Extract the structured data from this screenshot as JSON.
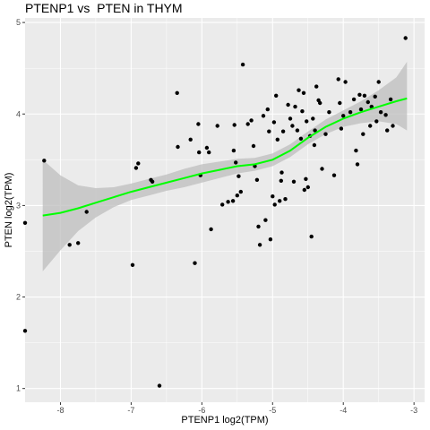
{
  "chart_data": {
    "type": "scatter",
    "title": "PTENP1 vs  PTEN in THYM",
    "xlabel": "PTENP1 log2(TPM)",
    "ylabel": "PTEN log2(TPM)",
    "xlim": [
      -8.5,
      -2.85
    ],
    "ylim": [
      0.85,
      5.05
    ],
    "x_ticks": [
      -8,
      -7,
      -6,
      -5,
      -4,
      -3
    ],
    "y_ticks": [
      1,
      2,
      3,
      4,
      5
    ],
    "grid": true,
    "panel_background": "#ebebeb",
    "grid_color": "#ffffff",
    "point_color": "#000000",
    "smooth_color": "#00ff00",
    "ribbon_color": "#bebebe",
    "points": [
      [
        -8.5,
        2.81
      ],
      [
        -8.5,
        1.63
      ],
      [
        -8.23,
        3.49
      ],
      [
        -7.87,
        2.57
      ],
      [
        -7.75,
        2.59
      ],
      [
        -7.63,
        2.93
      ],
      [
        -6.98,
        2.35
      ],
      [
        -6.93,
        3.41
      ],
      [
        -6.9,
        3.46
      ],
      [
        -6.72,
        3.28
      ],
      [
        -6.7,
        3.26
      ],
      [
        -6.6,
        1.03
      ],
      [
        -6.35,
        4.23
      ],
      [
        -6.34,
        3.64
      ],
      [
        -6.16,
        3.72
      ],
      [
        -6.1,
        2.37
      ],
      [
        -6.05,
        3.89
      ],
      [
        -6.04,
        3.58
      ],
      [
        -6.02,
        3.33
      ],
      [
        -5.93,
        3.63
      ],
      [
        -5.9,
        3.58
      ],
      [
        -5.87,
        2.74
      ],
      [
        -5.78,
        3.87
      ],
      [
        -5.71,
        3.01
      ],
      [
        -5.63,
        3.04
      ],
      [
        -5.56,
        3.05
      ],
      [
        -5.55,
        3.6
      ],
      [
        -5.54,
        3.88
      ],
      [
        -5.52,
        3.47
      ],
      [
        -5.5,
        3.11
      ],
      [
        -5.48,
        3.32
      ],
      [
        -5.45,
        3.15
      ],
      [
        -5.42,
        4.54
      ],
      [
        -5.35,
        3.89
      ],
      [
        -5.3,
        3.93
      ],
      [
        -5.27,
        3.65
      ],
      [
        -5.25,
        3.43
      ],
      [
        -5.22,
        3.28
      ],
      [
        -5.2,
        2.77
      ],
      [
        -5.18,
        2.57
      ],
      [
        -5.13,
        3.98
      ],
      [
        -5.1,
        2.84
      ],
      [
        -5.07,
        4.05
      ],
      [
        -5.05,
        3.81
      ],
      [
        -5.03,
        2.63
      ],
      [
        -5.0,
        3.1
      ],
      [
        -4.98,
        3.91
      ],
      [
        -4.97,
        3.01
      ],
      [
        -4.95,
        4.2
      ],
      [
        -4.93,
        3.72
      ],
      [
        -4.9,
        3.05
      ],
      [
        -4.88,
        3.27
      ],
      [
        -4.87,
        3.36
      ],
      [
        -4.85,
        3.81
      ],
      [
        -4.82,
        3.07
      ],
      [
        -4.78,
        4.1
      ],
      [
        -4.75,
        3.95
      ],
      [
        -4.72,
        3.87
      ],
      [
        -4.7,
        3.26
      ],
      [
        -4.68,
        4.08
      ],
      [
        -4.65,
        3.82
      ],
      [
        -4.63,
        4.26
      ],
      [
        -4.6,
        3.73
      ],
      [
        -4.58,
        4.03
      ],
      [
        -4.56,
        4.23
      ],
      [
        -4.55,
        3.17
      ],
      [
        -4.53,
        3.29
      ],
      [
        -4.52,
        3.92
      ],
      [
        -4.5,
        3.2
      ],
      [
        -4.47,
        3.76
      ],
      [
        -4.45,
        2.66
      ],
      [
        -4.43,
        3.95
      ],
      [
        -4.41,
        3.66
      ],
      [
        -4.4,
        3.82
      ],
      [
        -4.38,
        4.3
      ],
      [
        -4.35,
        4.15
      ],
      [
        -4.33,
        4.12
      ],
      [
        -4.3,
        3.4
      ],
      [
        -4.25,
        3.78
      ],
      [
        -4.2,
        4.02
      ],
      [
        -4.13,
        3.33
      ],
      [
        -4.07,
        4.38
      ],
      [
        -4.05,
        4.12
      ],
      [
        -4.03,
        3.84
      ],
      [
        -4.0,
        3.98
      ],
      [
        -3.97,
        4.35
      ],
      [
        -3.9,
        4.02
      ],
      [
        -3.85,
        4.16
      ],
      [
        -3.82,
        3.6
      ],
      [
        -3.8,
        3.45
      ],
      [
        -3.77,
        4.21
      ],
      [
        -3.75,
        4.05
      ],
      [
        -3.72,
        3.78
      ],
      [
        -3.7,
        4.2
      ],
      [
        -3.65,
        4.13
      ],
      [
        -3.62,
        3.87
      ],
      [
        -3.6,
        4.08
      ],
      [
        -3.55,
        4.19
      ],
      [
        -3.53,
        3.92
      ],
      [
        -3.5,
        4.35
      ],
      [
        -3.47,
        4.02
      ],
      [
        -3.4,
        3.99
      ],
      [
        -3.38,
        3.82
      ],
      [
        -3.33,
        4.16
      ],
      [
        -3.3,
        3.87
      ],
      [
        -3.12,
        4.83
      ]
    ],
    "smooth_fit": [
      [
        -8.25,
        2.89
      ],
      [
        -8.0,
        2.92
      ],
      [
        -7.75,
        2.97
      ],
      [
        -7.5,
        3.03
      ],
      [
        -7.25,
        3.09
      ],
      [
        -7.0,
        3.15
      ],
      [
        -6.75,
        3.2
      ],
      [
        -6.5,
        3.25
      ],
      [
        -6.25,
        3.3
      ],
      [
        -6.0,
        3.35
      ],
      [
        -5.75,
        3.39
      ],
      [
        -5.5,
        3.43
      ],
      [
        -5.25,
        3.45
      ],
      [
        -5.0,
        3.5
      ],
      [
        -4.75,
        3.6
      ],
      [
        -4.5,
        3.74
      ],
      [
        -4.25,
        3.86
      ],
      [
        -4.0,
        3.95
      ],
      [
        -3.75,
        4.02
      ],
      [
        -3.5,
        4.08
      ],
      [
        -3.25,
        4.14
      ],
      [
        -3.1,
        4.17
      ]
    ],
    "confidence_band": [
      [
        -8.25,
        2.28,
        3.5
      ],
      [
        -8.0,
        2.51,
        3.33
      ],
      [
        -7.75,
        2.72,
        3.22
      ],
      [
        -7.5,
        2.87,
        3.19
      ],
      [
        -7.25,
        2.98,
        3.2
      ],
      [
        -7.0,
        3.06,
        3.24
      ],
      [
        -6.75,
        3.11,
        3.29
      ],
      [
        -6.5,
        3.16,
        3.34
      ],
      [
        -6.25,
        3.2,
        3.4
      ],
      [
        -6.0,
        3.25,
        3.45
      ],
      [
        -5.75,
        3.3,
        3.48
      ],
      [
        -5.5,
        3.35,
        3.51
      ],
      [
        -5.25,
        3.38,
        3.52
      ],
      [
        -5.0,
        3.43,
        3.57
      ],
      [
        -4.75,
        3.53,
        3.67
      ],
      [
        -4.5,
        3.67,
        3.81
      ],
      [
        -4.25,
        3.78,
        3.94
      ],
      [
        -4.0,
        3.86,
        4.04
      ],
      [
        -3.75,
        3.9,
        4.14
      ],
      [
        -3.5,
        3.92,
        4.26
      ],
      [
        -3.25,
        3.89,
        4.4
      ],
      [
        -3.1,
        3.82,
        4.57
      ]
    ]
  }
}
